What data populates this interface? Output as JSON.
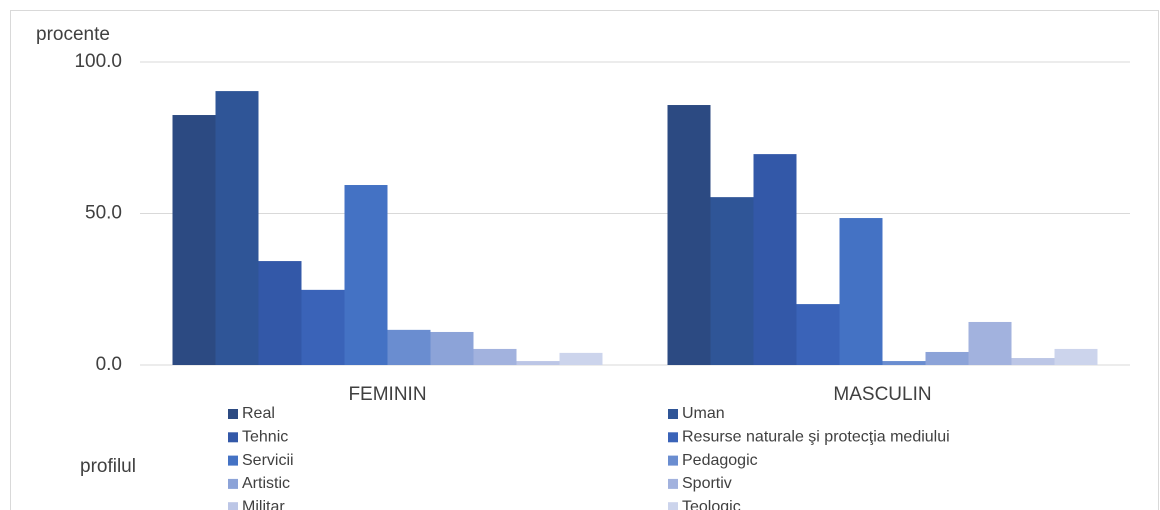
{
  "chart_data": {
    "type": "bar",
    "y_axis_label": "procente",
    "x_axis_label": "profilul",
    "categories": [
      "FEMININ",
      "MASCULIN"
    ],
    "series": [
      {
        "name": "Real",
        "color": "#2c4a82",
        "values": [
          82.5,
          85.8
        ]
      },
      {
        "name": "Uman",
        "color": "#2f5597",
        "values": [
          90.4,
          55.4
        ]
      },
      {
        "name": "Tehnic",
        "color": "#3358a8",
        "values": [
          34.3,
          69.6
        ]
      },
      {
        "name": "Resurse naturale şi protecţia mediului",
        "color": "#3a63b8",
        "values": [
          24.8,
          20.1
        ]
      },
      {
        "name": "Servicii",
        "color": "#4472c4",
        "values": [
          59.4,
          48.5
        ]
      },
      {
        "name": "Pedagogic",
        "color": "#6a8dd0",
        "values": [
          11.6,
          1.3
        ]
      },
      {
        "name": "Artistic",
        "color": "#8ca3d8",
        "values": [
          10.9,
          4.3
        ]
      },
      {
        "name": "Sportiv",
        "color": "#a2b2de",
        "values": [
          5.3,
          14.2
        ]
      },
      {
        "name": "Militar",
        "color": "#bcc6e6",
        "values": [
          1.3,
          2.3
        ]
      },
      {
        "name": "Teologic",
        "color": "#ccd4ec",
        "values": [
          4.0,
          5.3
        ]
      }
    ],
    "ylim": [
      0,
      100
    ],
    "yticks": [
      {
        "value": 0,
        "label": "0.0"
      },
      {
        "value": 50,
        "label": "50.0"
      },
      {
        "value": 100,
        "label": "100.0"
      }
    ],
    "grid": true
  }
}
